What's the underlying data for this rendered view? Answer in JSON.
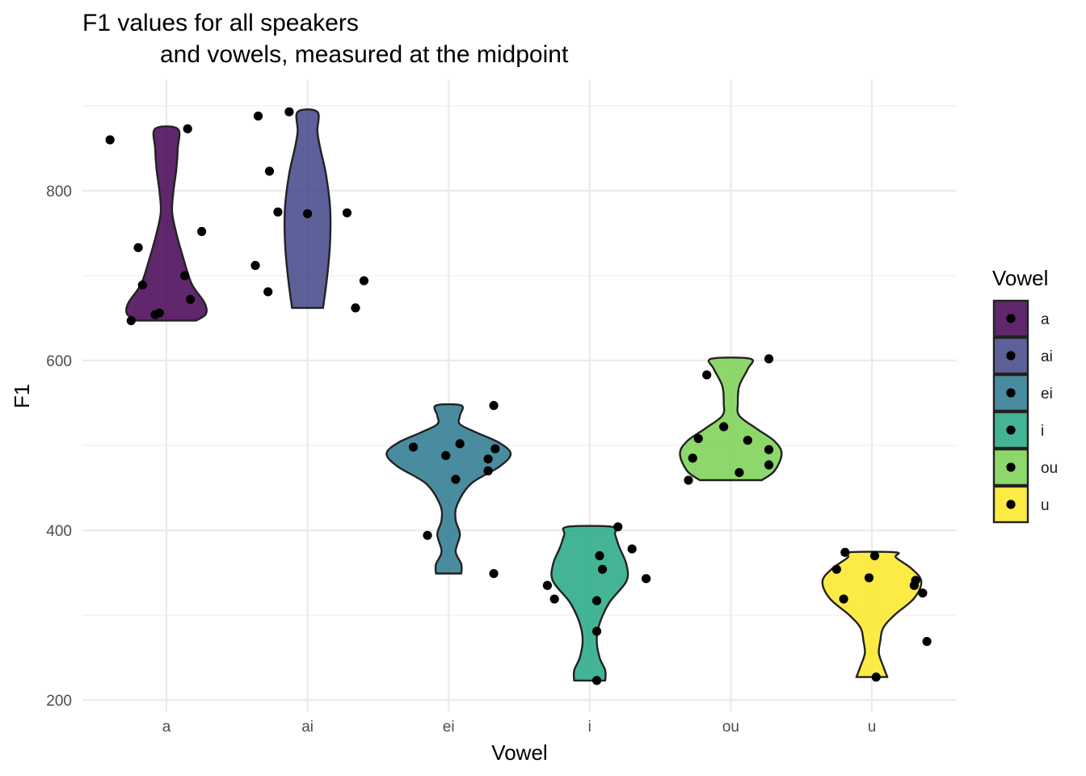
{
  "chart_data": {
    "type": "violin",
    "title": [
      "F1 values for all speakers",
      "and vowels, measured at the midpoint"
    ],
    "xlabel": "Vowel",
    "ylabel": "F1",
    "categories": [
      "a",
      "ai",
      "ei",
      "i",
      "ou",
      "u"
    ],
    "yticks": [
      200,
      400,
      600,
      800
    ],
    "ylim": [
      195,
      930
    ],
    "grid": true,
    "legend": {
      "title": "Vowel",
      "position": "right",
      "items": [
        "a",
        "ai",
        "ei",
        "i",
        "ou",
        "u"
      ]
    },
    "colors": {
      "a": "#440154",
      "ai": "#414487",
      "ei": "#2A788E",
      "i": "#22A884",
      "ou": "#7AD151",
      "u": "#FDE725",
      "outline": "#222222",
      "point": "#000000",
      "grid": "#ebebeb"
    },
    "series": [
      {
        "name": "a",
        "points": [
          [
            -0.4,
            860
          ],
          [
            0.15,
            873
          ],
          [
            -0.2,
            733
          ],
          [
            0.25,
            752
          ],
          [
            -0.17,
            689
          ],
          [
            0.13,
            700
          ],
          [
            0.17,
            672
          ],
          [
            -0.08,
            654
          ],
          [
            -0.05,
            656
          ],
          [
            -0.25,
            647
          ]
        ],
        "violin": {
          "ymin": 647,
          "ymax": 873,
          "half_widths": [
            [
              647,
              0.21
            ],
            [
              655,
              0.28
            ],
            [
              668,
              0.27
            ],
            [
              690,
              0.18
            ],
            [
              720,
              0.12
            ],
            [
              750,
              0.07
            ],
            [
              775,
              0.04
            ],
            [
              800,
              0.05
            ],
            [
              825,
              0.07
            ],
            [
              850,
              0.08
            ],
            [
              873,
              0.08
            ]
          ]
        }
      },
      {
        "name": "ai",
        "points": [
          [
            -0.35,
            888
          ],
          [
            -0.13,
            893
          ],
          [
            -0.27,
            823
          ],
          [
            -0.21,
            775
          ],
          [
            0.0,
            773
          ],
          [
            0.28,
            774
          ],
          [
            -0.37,
            712
          ],
          [
            -0.28,
            681
          ],
          [
            0.4,
            694
          ],
          [
            0.34,
            662
          ]
        ],
        "violin": {
          "ymin": 662,
          "ymax": 893,
          "half_widths": [
            [
              662,
              0.11
            ],
            [
              700,
              0.14
            ],
            [
              740,
              0.16
            ],
            [
              780,
              0.16
            ],
            [
              820,
              0.13
            ],
            [
              850,
              0.09
            ],
            [
              870,
              0.07
            ],
            [
              893,
              0.07
            ]
          ]
        }
      },
      {
        "name": "ei",
        "points": [
          [
            -0.25,
            498
          ],
          [
            0.32,
            547
          ],
          [
            -0.02,
            488
          ],
          [
            0.08,
            502
          ],
          [
            0.28,
            484
          ],
          [
            0.33,
            496
          ],
          [
            0.28,
            470
          ],
          [
            0.05,
            460
          ],
          [
            -0.15,
            394
          ],
          [
            0.32,
            349
          ]
        ],
        "violin": {
          "ymin": 349,
          "ymax": 547,
          "half_widths": [
            [
              349,
              0.09
            ],
            [
              360,
              0.09
            ],
            [
              375,
              0.05
            ],
            [
              395,
              0.08
            ],
            [
              412,
              0.05
            ],
            [
              430,
              0.06
            ],
            [
              455,
              0.16
            ],
            [
              475,
              0.36
            ],
            [
              490,
              0.44
            ],
            [
              503,
              0.36
            ],
            [
              515,
              0.2
            ],
            [
              525,
              0.08
            ],
            [
              535,
              0.08
            ],
            [
              547,
              0.09
            ]
          ]
        }
      },
      {
        "name": "i",
        "points": [
          [
            0.2,
            404
          ],
          [
            0.07,
            370
          ],
          [
            0.3,
            378
          ],
          [
            0.09,
            354
          ],
          [
            0.4,
            343
          ],
          [
            -0.3,
            335
          ],
          [
            -0.25,
            319
          ],
          [
            0.05,
            317
          ],
          [
            0.05,
            281
          ],
          [
            0.05,
            223
          ]
        ],
        "violin": {
          "ymin": 223,
          "ymax": 404,
          "half_widths": [
            [
              223,
              0.11
            ],
            [
              235,
              0.11
            ],
            [
              250,
              0.07
            ],
            [
              270,
              0.05
            ],
            [
              290,
              0.07
            ],
            [
              315,
              0.14
            ],
            [
              340,
              0.26
            ],
            [
              360,
              0.26
            ],
            [
              380,
              0.21
            ],
            [
              395,
              0.18
            ],
            [
              404,
              0.16
            ]
          ]
        }
      },
      {
        "name": "ou",
        "points": [
          [
            0.27,
            602
          ],
          [
            -0.17,
            583
          ],
          [
            -0.05,
            522
          ],
          [
            -0.23,
            508
          ],
          [
            0.12,
            506
          ],
          [
            0.27,
            495
          ],
          [
            -0.27,
            485
          ],
          [
            0.27,
            477
          ],
          [
            0.06,
            468
          ],
          [
            -0.3,
            459
          ]
        ],
        "violin": {
          "ymin": 459,
          "ymax": 602,
          "half_widths": [
            [
              459,
              0.22
            ],
            [
              470,
              0.31
            ],
            [
              490,
              0.36
            ],
            [
              505,
              0.31
            ],
            [
              520,
              0.18
            ],
            [
              535,
              0.06
            ],
            [
              550,
              0.05
            ],
            [
              570,
              0.06
            ],
            [
              590,
              0.12
            ],
            [
              602,
              0.14
            ]
          ]
        }
      },
      {
        "name": "u",
        "points": [
          [
            -0.19,
            374
          ],
          [
            0.02,
            370
          ],
          [
            -0.25,
            354
          ],
          [
            -0.02,
            344
          ],
          [
            0.31,
            341
          ],
          [
            0.3,
            335
          ],
          [
            0.36,
            326
          ],
          [
            -0.2,
            319
          ],
          [
            0.39,
            269
          ],
          [
            0.03,
            227
          ]
        ],
        "violin": {
          "ymin": 227,
          "ymax": 374,
          "half_widths": [
            [
              227,
              0.11
            ],
            [
              240,
              0.08
            ],
            [
              255,
              0.05
            ],
            [
              270,
              0.06
            ],
            [
              285,
              0.08
            ],
            [
              300,
              0.16
            ],
            [
              320,
              0.3
            ],
            [
              340,
              0.35
            ],
            [
              355,
              0.28
            ],
            [
              368,
              0.17
            ],
            [
              374,
              0.17
            ]
          ]
        }
      }
    ]
  }
}
